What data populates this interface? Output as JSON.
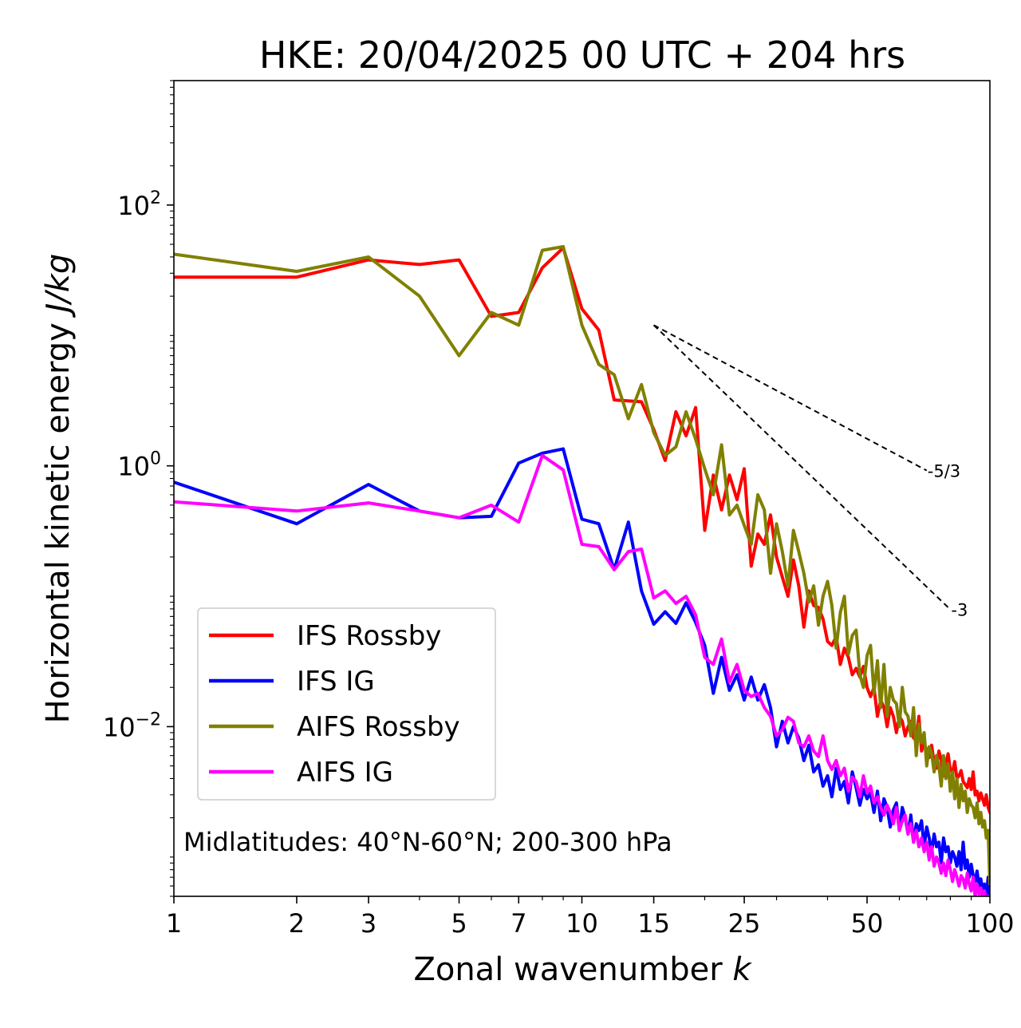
{
  "chart_data": {
    "type": "line",
    "title": "HKE: 20/04/2025 00 UTC + 204 hrs",
    "xlabel": "Zonal wavenumber k",
    "xlabel_parts": {
      "text": "Zonal wavenumber ",
      "symbol": "k"
    },
    "ylabel": "Horizontal kinetic energy J/kg",
    "ylabel_parts": {
      "text": "Horizontal kinetic energy ",
      "unit": "J/kg"
    },
    "xscale": "log",
    "yscale": "log",
    "xlim": [
      1,
      100
    ],
    "ylim": [
      0.0005,
      900
    ],
    "x_ticks": [
      1,
      2,
      3,
      5,
      7,
      10,
      15,
      25,
      50,
      100
    ],
    "x_tick_labels": [
      "1",
      "2",
      "3",
      "5",
      "7",
      "10",
      "15",
      "25",
      "50",
      "100"
    ],
    "y_ticks": [
      {
        "value": 100,
        "base": "10",
        "exp": "2"
      },
      {
        "value": 1,
        "base": "10",
        "exp": "0"
      },
      {
        "value": 0.01,
        "base": "10",
        "exp": "−2"
      }
    ],
    "annotation": "Midlatitudes: 40°N-60°N; 200-300 hPa",
    "legend_position": "lower-left",
    "grid": false,
    "series": [
      {
        "name": "IFS Rossby",
        "color": "#ff0000",
        "x": [
          1,
          2,
          3,
          4,
          5,
          6,
          7,
          8,
          9,
          10,
          11,
          12,
          14,
          15,
          16,
          17,
          18,
          19,
          20,
          21,
          22,
          23,
          24,
          25,
          26,
          27,
          28,
          29,
          30,
          31,
          32,
          33,
          34,
          35,
          36,
          37,
          38,
          39,
          40,
          41,
          42,
          43,
          44,
          45,
          46,
          47,
          48,
          49,
          50,
          51,
          52,
          53,
          54,
          55,
          56,
          57,
          58,
          59,
          60,
          61,
          62,
          63,
          64,
          65,
          66,
          67,
          68,
          69,
          70,
          71,
          72,
          73,
          74,
          75,
          76,
          77,
          78,
          79,
          80,
          81,
          82,
          83,
          84,
          85,
          86,
          87,
          88,
          89,
          90,
          91,
          92,
          93,
          94,
          95,
          96,
          97,
          98,
          99,
          100
        ],
        "y": [
          28,
          28,
          38,
          35,
          38,
          14,
          15,
          33,
          47,
          16,
          11,
          3.2,
          3.1,
          1.9,
          1.1,
          2.6,
          1.7,
          2.8,
          0.32,
          0.85,
          0.46,
          0.85,
          0.55,
          0.95,
          0.17,
          0.3,
          0.25,
          0.42,
          0.2,
          0.14,
          0.1,
          0.19,
          0.12,
          0.058,
          0.11,
          0.085,
          0.082,
          0.067,
          0.045,
          0.042,
          0.049,
          0.03,
          0.04,
          0.034,
          0.025,
          0.028,
          0.024,
          0.029,
          0.02,
          0.017,
          0.02,
          0.012,
          0.016,
          0.014,
          0.01,
          0.014,
          0.012,
          0.009,
          0.012,
          0.011,
          0.0085,
          0.01,
          0.011,
          0.0082,
          0.0078,
          0.012,
          0.0065,
          0.0075,
          0.0065,
          0.0058,
          0.0072,
          0.0052,
          0.0048,
          0.0065,
          0.0056,
          0.0042,
          0.0052,
          0.0062,
          0.0046,
          0.0045,
          0.0054,
          0.004,
          0.0042,
          0.0046,
          0.0038,
          0.0036,
          0.0034,
          0.004,
          0.0033,
          0.0045,
          0.003,
          0.0032,
          0.0027,
          0.0031,
          0.0028,
          0.0025,
          0.003,
          0.0024,
          0.0022
        ]
      },
      {
        "name": "IFS IG",
        "color": "#0000ff",
        "x": [
          1,
          2,
          3,
          4,
          5,
          6,
          7,
          8,
          9,
          10,
          11,
          12,
          13,
          14,
          15,
          16,
          17,
          18,
          19,
          20,
          21,
          22,
          23,
          24,
          25,
          26,
          27,
          28,
          29,
          30,
          31,
          32,
          33,
          34,
          35,
          36,
          37,
          38,
          39,
          40,
          41,
          42,
          43,
          44,
          45,
          46,
          47,
          48,
          49,
          50,
          51,
          52,
          53,
          54,
          55,
          56,
          57,
          58,
          59,
          60,
          61,
          62,
          63,
          64,
          65,
          66,
          67,
          68,
          69,
          70,
          71,
          72,
          73,
          74,
          75,
          76,
          77,
          78,
          79,
          80,
          81,
          82,
          83,
          84,
          85,
          86,
          87,
          88,
          89,
          90,
          91,
          92,
          93,
          94,
          95,
          96,
          97,
          98,
          99,
          100
        ],
        "y": [
          0.75,
          0.36,
          0.72,
          0.45,
          0.4,
          0.41,
          1.05,
          1.25,
          1.35,
          0.39,
          0.36,
          0.16,
          0.37,
          0.11,
          0.061,
          0.076,
          0.062,
          0.089,
          0.063,
          0.042,
          0.018,
          0.034,
          0.019,
          0.025,
          0.016,
          0.024,
          0.016,
          0.021,
          0.014,
          0.007,
          0.011,
          0.0075,
          0.01,
          0.0082,
          0.0055,
          0.0072,
          0.0045,
          0.0051,
          0.0035,
          0.0042,
          0.0029,
          0.0048,
          0.0033,
          0.0038,
          0.0026,
          0.0045,
          0.0034,
          0.0025,
          0.0033,
          0.0028,
          0.0031,
          0.0022,
          0.0032,
          0.0019,
          0.0028,
          0.0024,
          0.0017,
          0.0023,
          0.0026,
          0.0016,
          0.0024,
          0.002,
          0.0015,
          0.0021,
          0.0013,
          0.0018,
          0.0016,
          0.0019,
          0.0012,
          0.0017,
          0.0014,
          0.0011,
          0.0015,
          0.0012,
          0.0013,
          0.0009,
          0.0014,
          0.0011,
          0.0012,
          0.0009,
          0.0011,
          0.001,
          0.00085,
          0.0011,
          0.0008,
          0.0013,
          0.00082,
          0.00095,
          0.0007,
          0.00088,
          0.00072,
          0.00065,
          0.00078,
          0.0006,
          0.00068,
          0.00055,
          0.00062,
          0.0005,
          0.0007,
          0.00045
        ]
      },
      {
        "name": "AIFS Rossby",
        "color": "#808000",
        "x": [
          1,
          2,
          3,
          4,
          5,
          6,
          7,
          8,
          9,
          10,
          11,
          12,
          13,
          14,
          15,
          16,
          17,
          18,
          19,
          20,
          21,
          22,
          23,
          24,
          25,
          26,
          27,
          28,
          29,
          30,
          31,
          32,
          33,
          34,
          35,
          36,
          37,
          38,
          39,
          40,
          41,
          42,
          43,
          44,
          45,
          46,
          47,
          48,
          49,
          50,
          51,
          52,
          53,
          54,
          55,
          56,
          57,
          58,
          59,
          60,
          61,
          62,
          63,
          64,
          65,
          66,
          67,
          68,
          69,
          70,
          71,
          72,
          73,
          74,
          75,
          76,
          77,
          78,
          79,
          80,
          81,
          82,
          83,
          84,
          85,
          86,
          87,
          88,
          89,
          90,
          91,
          92,
          93,
          94,
          95,
          96,
          97,
          98,
          99,
          100
        ],
        "y": [
          42,
          31,
          40,
          20,
          7,
          15,
          12,
          45,
          48,
          12,
          6,
          5,
          2.3,
          4.2,
          1.8,
          1.2,
          1.4,
          2.6,
          1.6,
          0.95,
          0.6,
          1.45,
          0.42,
          0.5,
          0.35,
          0.25,
          0.6,
          0.46,
          0.15,
          0.36,
          0.22,
          0.12,
          0.32,
          0.22,
          0.15,
          0.09,
          0.12,
          0.06,
          0.1,
          0.13,
          0.085,
          0.04,
          0.075,
          0.1,
          0.036,
          0.05,
          0.055,
          0.025,
          0.02,
          0.035,
          0.042,
          0.018,
          0.032,
          0.014,
          0.03,
          0.012,
          0.02,
          0.016,
          0.015,
          0.01,
          0.02,
          0.013,
          0.012,
          0.0085,
          0.014,
          0.006,
          0.0105,
          0.0075,
          0.009,
          0.005,
          0.007,
          0.0062,
          0.0045,
          0.006,
          0.005,
          0.0035,
          0.006,
          0.004,
          0.0052,
          0.0032,
          0.0045,
          0.0028,
          0.004,
          0.0024,
          0.0036,
          0.0027,
          0.0032,
          0.0022,
          0.0028,
          0.0025,
          0.0024,
          0.002,
          0.0026,
          0.0018,
          0.0022,
          0.0017,
          0.0019,
          0.0014,
          0.0016,
          0.00062
        ]
      },
      {
        "name": "AIFS IG",
        "color": "#ff00ff",
        "x": [
          1,
          2,
          3,
          4,
          5,
          6,
          7,
          8,
          9,
          10,
          11,
          12,
          13,
          14,
          15,
          16,
          17,
          18,
          19,
          20,
          21,
          22,
          23,
          24,
          25,
          26,
          27,
          28,
          29,
          30,
          31,
          32,
          33,
          34,
          35,
          36,
          37,
          38,
          39,
          40,
          41,
          42,
          43,
          44,
          45,
          46,
          47,
          48,
          49,
          50,
          51,
          52,
          53,
          54,
          55,
          56,
          57,
          58,
          59,
          60,
          61,
          62,
          63,
          64,
          65,
          66,
          67,
          68,
          69,
          70,
          71,
          72,
          73,
          74,
          75,
          76,
          77,
          78,
          79,
          80,
          81,
          82,
          83,
          84,
          85,
          86,
          87,
          88,
          89,
          90,
          91,
          92,
          93,
          94,
          95,
          96,
          97,
          98,
          99,
          100
        ],
        "y": [
          0.53,
          0.45,
          0.52,
          0.45,
          0.4,
          0.5,
          0.37,
          1.2,
          0.93,
          0.25,
          0.24,
          0.16,
          0.22,
          0.23,
          0.097,
          0.11,
          0.088,
          0.1,
          0.072,
          0.034,
          0.03,
          0.047,
          0.022,
          0.03,
          0.019,
          0.017,
          0.018,
          0.014,
          0.012,
          0.0085,
          0.0095,
          0.0118,
          0.011,
          0.0075,
          0.007,
          0.0085,
          0.0065,
          0.0059,
          0.0085,
          0.0055,
          0.0047,
          0.0055,
          0.0042,
          0.0048,
          0.0032,
          0.0041,
          0.0038,
          0.0029,
          0.0042,
          0.0031,
          0.0035,
          0.0026,
          0.0029,
          0.0024,
          0.0021,
          0.0025,
          0.0022,
          0.0018,
          0.0024,
          0.0016,
          0.0019,
          0.0021,
          0.0015,
          0.0018,
          0.0013,
          0.0016,
          0.0012,
          0.0014,
          0.0011,
          0.0013,
          0.00095,
          0.0012,
          0.00085,
          0.001,
          0.0009,
          0.00075,
          0.0009,
          0.00072,
          0.00095,
          0.0008,
          0.00065,
          0.0008,
          0.0007,
          0.0006,
          0.00072,
          0.00068,
          0.00058,
          0.00075,
          0.00062,
          0.00055,
          0.0007,
          0.0005,
          0.00062,
          0.00052,
          0.00058,
          0.00048,
          0.00055,
          0.00042,
          0.0005,
          0.00038
        ]
      }
    ],
    "reference_slopes": [
      {
        "label": "-5/3",
        "slope": -1.6667,
        "x_start": 15,
        "y_start": 12,
        "x_end": 70
      },
      {
        "label": "-3",
        "slope": -3,
        "x_start": 15,
        "y_start": 12,
        "x_end": 80
      }
    ]
  }
}
